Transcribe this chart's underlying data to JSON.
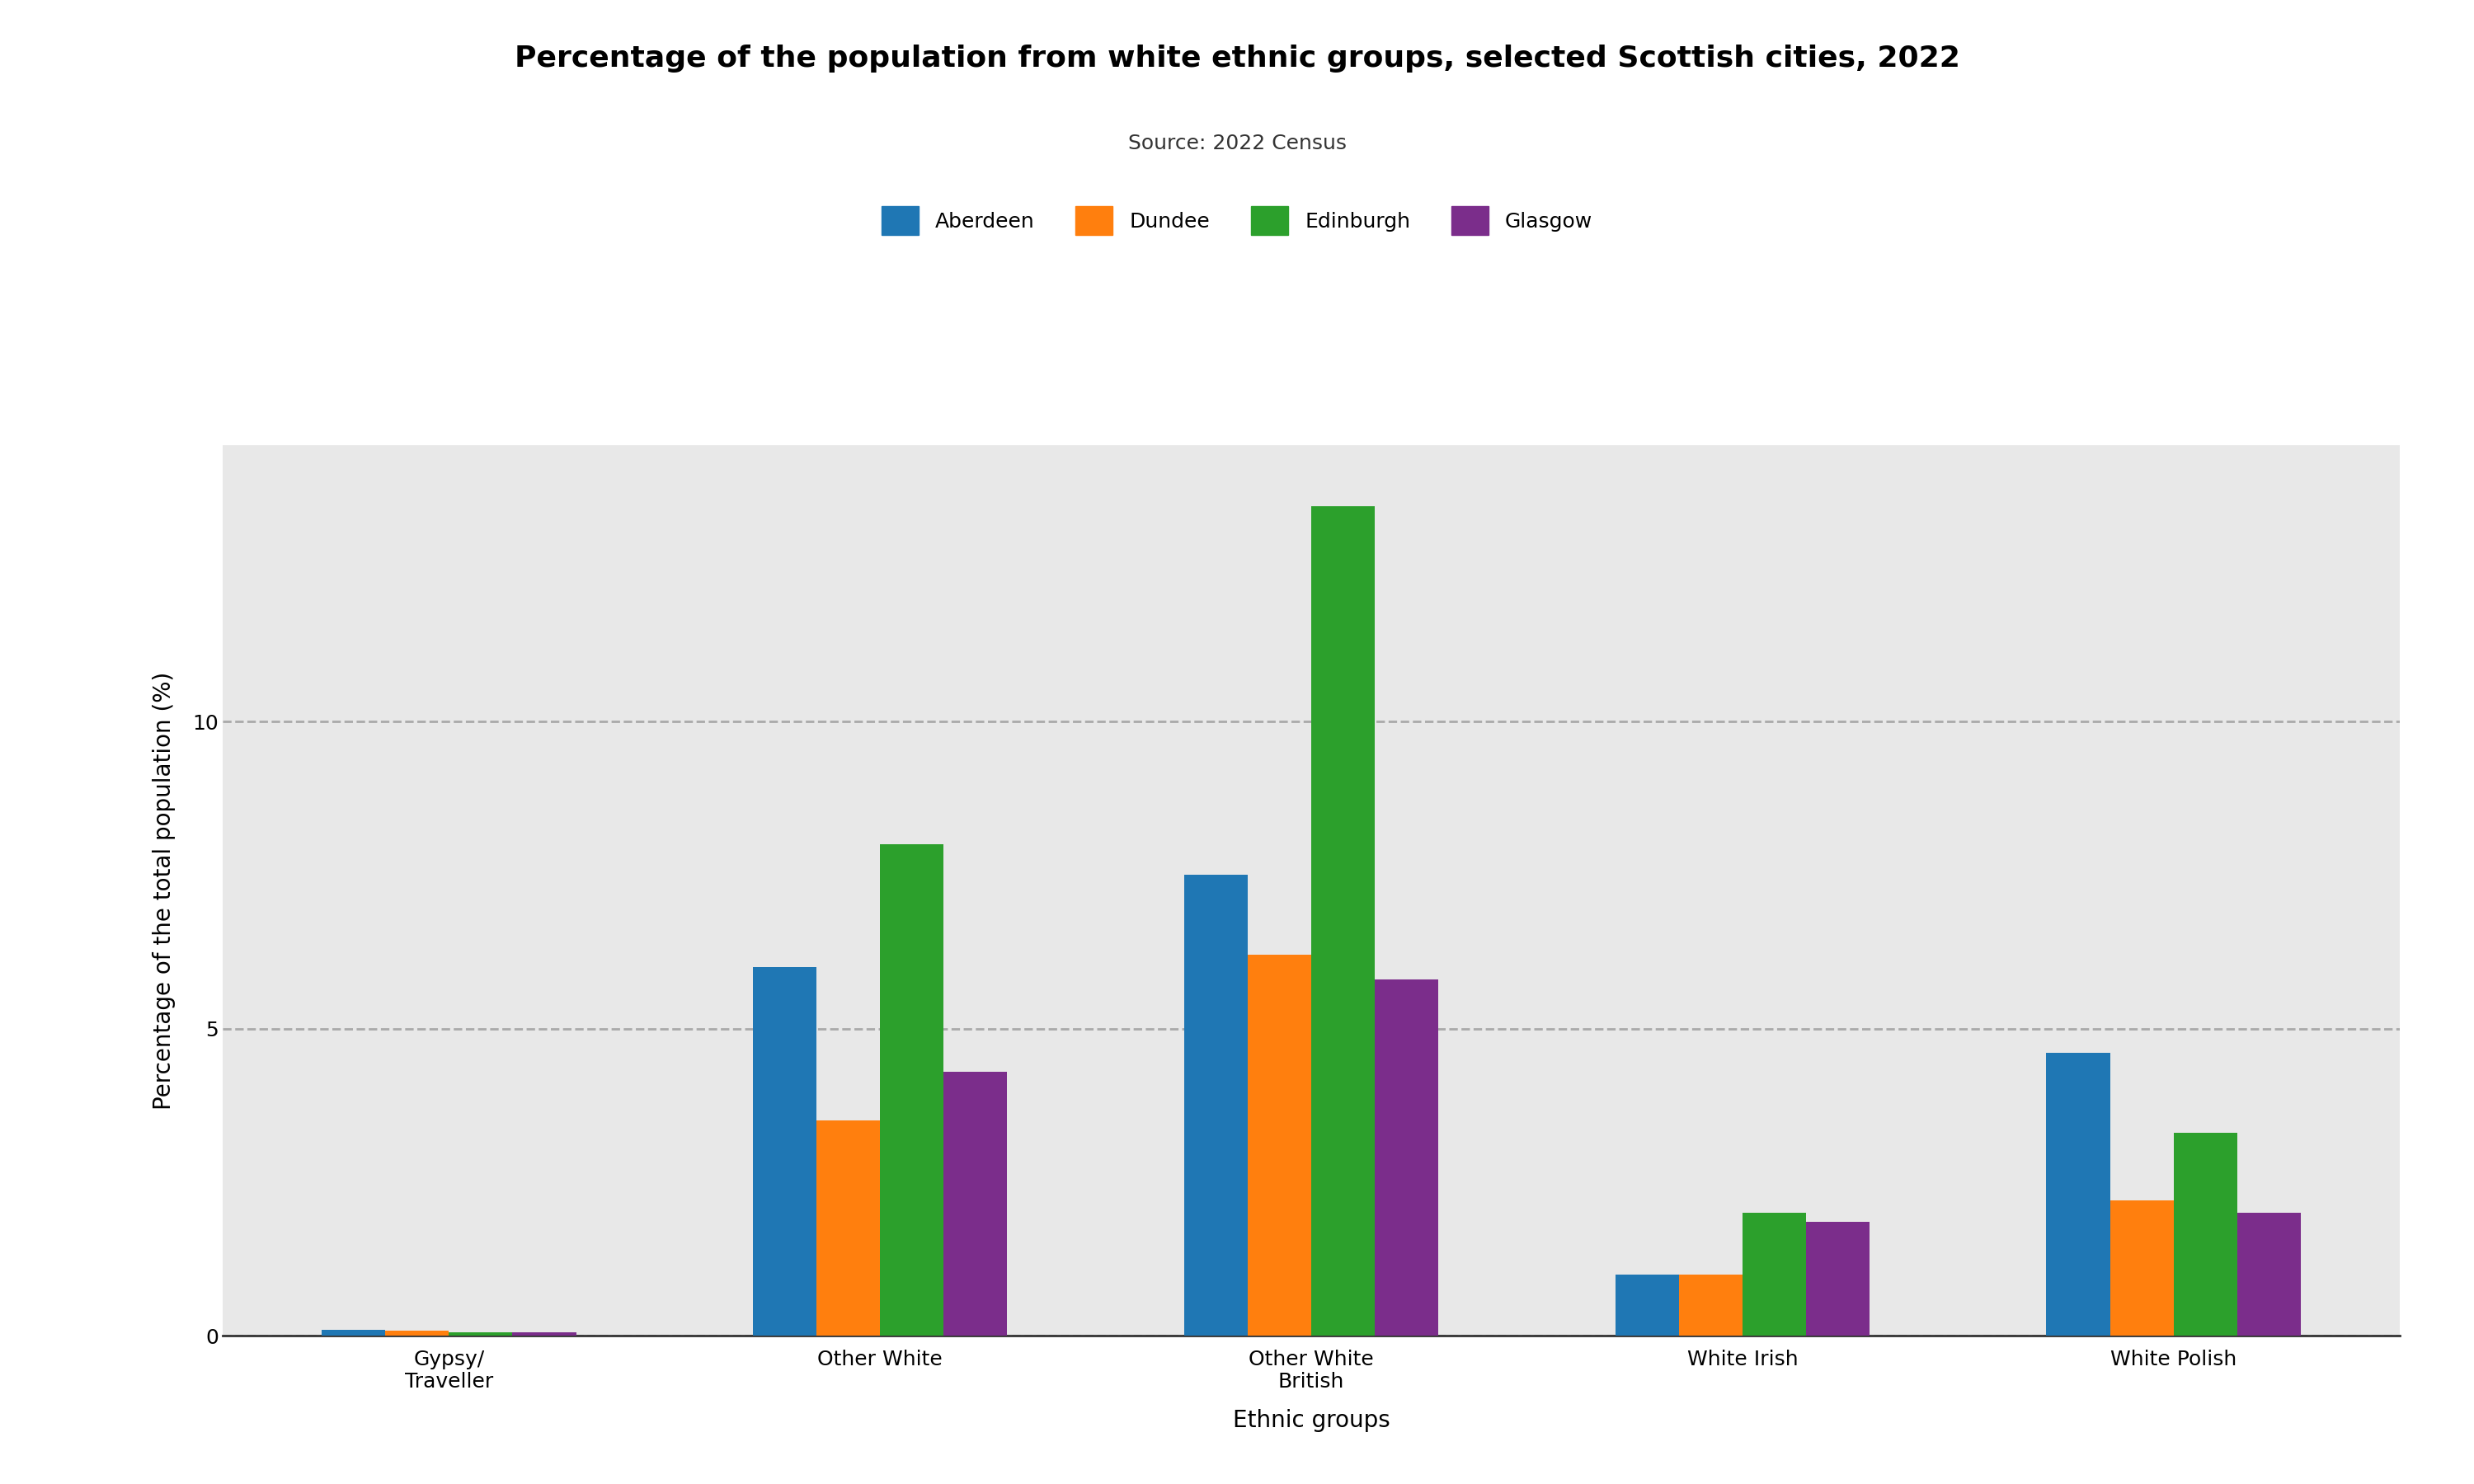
{
  "title": "Percentage of the population from white ethnic groups, selected Scottish cities, 2022",
  "subtitle": "Source: 2022 Census",
  "xlabel": "Ethnic groups",
  "ylabel": "Percentage of the total population (%)",
  "categories": [
    "Gypsy/\nTraveller",
    "Other White",
    "Other White\nBritish",
    "White Irish",
    "White Polish"
  ],
  "cities": [
    "Aberdeen",
    "Dundee",
    "Edinburgh",
    "Glasgow"
  ],
  "colors": [
    "#1f77b4",
    "#ff7f0e",
    "#2ca02c",
    "#7b2d8b"
  ],
  "values": {
    "Aberdeen": [
      0.1,
      6.0,
      7.5,
      1.0,
      4.6
    ],
    "Dundee": [
      0.08,
      3.5,
      6.2,
      1.0,
      2.2
    ],
    "Edinburgh": [
      0.05,
      8.0,
      13.5,
      2.0,
      3.3
    ],
    "Glasgow": [
      0.05,
      4.3,
      5.8,
      1.85,
      2.0
    ]
  },
  "ylim": [
    0,
    14.5
  ],
  "yticks": [
    0,
    5,
    10
  ],
  "grid_color": "#aaaaaa",
  "bg_color": "#e8e8e8",
  "title_fontsize": 26,
  "subtitle_fontsize": 18,
  "axis_label_fontsize": 20,
  "tick_fontsize": 18,
  "legend_fontsize": 18
}
